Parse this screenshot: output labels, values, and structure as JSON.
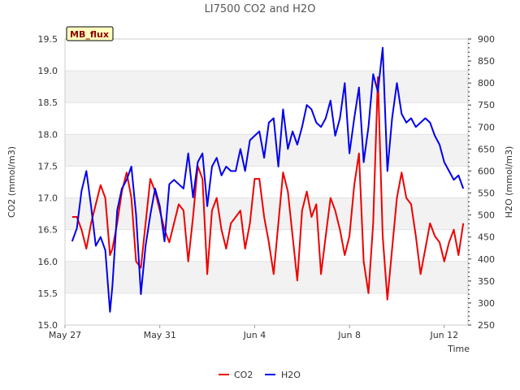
{
  "chart_data": {
    "type": "line",
    "title": "LI7500 CO2 and H2O",
    "badge": "MB_flux",
    "xlabel": "Time",
    "ylabel": "CO2 (mmol/m3)",
    "ylabel_right": "H2O (mmol/m3)",
    "xlim": [
      0,
      17
    ],
    "ylim": [
      15.0,
      19.5
    ],
    "ylim_right": [
      250,
      900
    ],
    "x_ticks": [
      {
        "value": 0,
        "label": "May 27"
      },
      {
        "value": 4,
        "label": "May 31"
      },
      {
        "value": 8,
        "label": "Jun 4"
      },
      {
        "value": 12,
        "label": "Jun 8"
      },
      {
        "value": 16,
        "label": "Jun 12"
      }
    ],
    "y_ticks": [
      "15.0",
      "15.5",
      "16.0",
      "16.5",
      "17.0",
      "17.5",
      "18.0",
      "18.5",
      "19.0",
      "19.5"
    ],
    "y_right_ticks": [
      "250",
      "300",
      "350",
      "400",
      "450",
      "500",
      "550",
      "600",
      "650",
      "700",
      "750",
      "800",
      "850",
      "900"
    ],
    "legend_position": "bottom-center",
    "series": [
      {
        "name": "CO2",
        "axis": "left",
        "color": "#ee0000",
        "x": [
          0.3,
          0.5,
          0.7,
          0.9,
          1.1,
          1.3,
          1.5,
          1.7,
          1.9,
          2.0,
          2.2,
          2.4,
          2.6,
          2.8,
          3.0,
          3.2,
          3.4,
          3.6,
          3.8,
          4.0,
          4.2,
          4.4,
          4.6,
          4.8,
          5.0,
          5.2,
          5.4,
          5.6,
          5.8,
          6.0,
          6.2,
          6.4,
          6.6,
          6.8,
          7.0,
          7.2,
          7.4,
          7.6,
          7.8,
          8.0,
          8.2,
          8.4,
          8.6,
          8.8,
          9.0,
          9.2,
          9.4,
          9.6,
          9.8,
          10.0,
          10.2,
          10.4,
          10.6,
          10.8,
          11.0,
          11.2,
          11.4,
          11.6,
          11.8,
          12.0,
          12.2,
          12.4,
          12.6,
          12.8,
          13.0,
          13.2,
          13.4,
          13.6,
          13.8,
          14.0,
          14.2,
          14.4,
          14.6,
          14.8,
          15.0,
          15.2,
          15.4,
          15.6,
          15.8,
          16.0,
          16.2,
          16.4,
          16.6,
          16.8
        ],
        "values": [
          16.7,
          16.7,
          16.5,
          16.2,
          16.6,
          16.9,
          17.2,
          17.0,
          16.1,
          16.2,
          16.6,
          17.1,
          17.4,
          17.0,
          16.0,
          15.9,
          16.6,
          17.3,
          17.1,
          16.8,
          16.5,
          16.3,
          16.6,
          16.9,
          16.8,
          16.0,
          16.7,
          17.5,
          17.3,
          15.8,
          16.8,
          17.0,
          16.5,
          16.2,
          16.6,
          16.7,
          16.8,
          16.2,
          16.6,
          17.3,
          17.3,
          16.7,
          16.3,
          15.8,
          16.6,
          17.4,
          17.1,
          16.4,
          15.7,
          16.8,
          17.1,
          16.7,
          16.9,
          15.8,
          16.4,
          17.0,
          16.8,
          16.5,
          16.1,
          16.4,
          17.2,
          17.7,
          16.0,
          15.5,
          16.6,
          18.9,
          16.4,
          15.4,
          16.2,
          17.0,
          17.4,
          17.0,
          16.9,
          16.4,
          15.8,
          16.2,
          16.6,
          16.4,
          16.3,
          16.0,
          16.3,
          16.5,
          16.1,
          16.6
        ]
      },
      {
        "name": "H2O",
        "axis": "right",
        "color": "#0000ee",
        "x": [
          0.3,
          0.5,
          0.7,
          0.9,
          1.1,
          1.3,
          1.5,
          1.7,
          1.9,
          2.0,
          2.2,
          2.4,
          2.6,
          2.8,
          3.0,
          3.2,
          3.4,
          3.6,
          3.8,
          4.0,
          4.2,
          4.4,
          4.6,
          4.8,
          5.0,
          5.2,
          5.4,
          5.6,
          5.8,
          6.0,
          6.2,
          6.4,
          6.6,
          6.8,
          7.0,
          7.2,
          7.4,
          7.6,
          7.8,
          8.0,
          8.2,
          8.4,
          8.6,
          8.8,
          9.0,
          9.2,
          9.4,
          9.6,
          9.8,
          10.0,
          10.2,
          10.4,
          10.6,
          10.8,
          11.0,
          11.2,
          11.4,
          11.6,
          11.8,
          12.0,
          12.2,
          12.4,
          12.6,
          12.8,
          13.0,
          13.2,
          13.4,
          13.6,
          13.8,
          14.0,
          14.2,
          14.4,
          14.6,
          14.8,
          15.0,
          15.2,
          15.4,
          15.6,
          15.8,
          16.0,
          16.2,
          16.4,
          16.6,
          16.8
        ],
        "values": [
          440,
          470,
          555,
          600,
          520,
          430,
          450,
          420,
          280,
          340,
          510,
          560,
          580,
          610,
          500,
          320,
          430,
          500,
          560,
          520,
          440,
          570,
          580,
          570,
          560,
          640,
          540,
          620,
          640,
          520,
          610,
          630,
          590,
          610,
          600,
          600,
          650,
          600,
          670,
          680,
          690,
          630,
          710,
          720,
          610,
          740,
          650,
          690,
          660,
          700,
          750,
          740,
          710,
          700,
          720,
          760,
          680,
          720,
          800,
          640,
          720,
          790,
          620,
          700,
          820,
          780,
          880,
          600,
          720,
          800,
          730,
          710,
          720,
          700,
          710,
          720,
          710,
          680,
          660,
          620,
          600,
          580,
          590,
          560
        ]
      }
    ]
  }
}
